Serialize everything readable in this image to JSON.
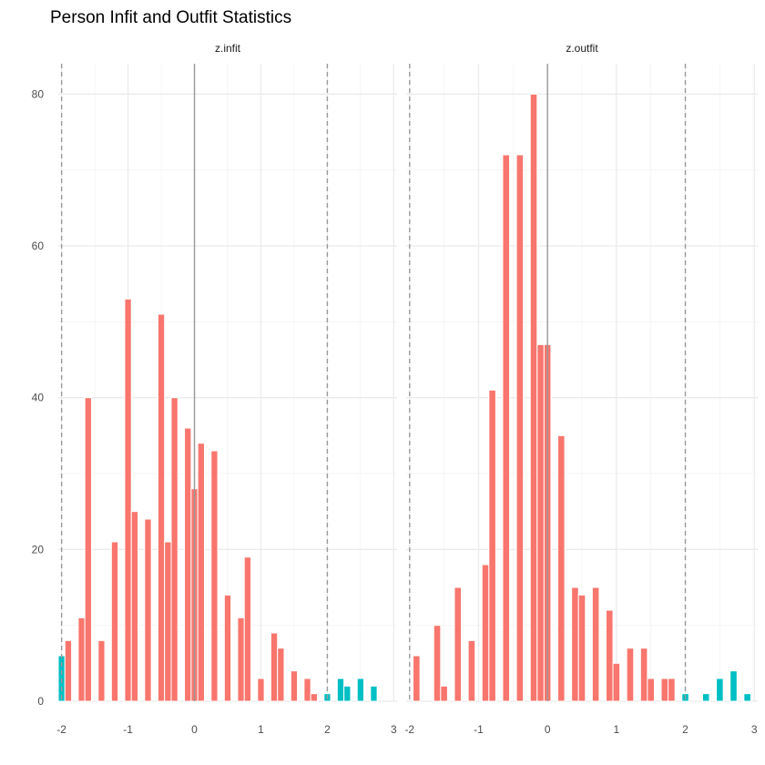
{
  "chart_data": {
    "type": "bar",
    "title": "Person Infit and Outfit Statistics",
    "xlabel": "",
    "ylabel": "",
    "ylim": [
      0,
      84
    ],
    "xlim": [
      -2.05,
      3.05
    ],
    "x_ticks": [
      -2,
      -1,
      0,
      1,
      2,
      3
    ],
    "y_ticks": [
      0,
      20,
      40,
      60,
      80
    ],
    "grid": true,
    "legend": "none",
    "reference_lines": {
      "solid": [
        0
      ],
      "dashed": [
        -2,
        2
      ]
    },
    "colors": {
      "inside": "#F8766D",
      "outside": "#00BFC4",
      "grid": "#ebebeb",
      "ref_line": "#999999"
    },
    "bin_width": 0.1,
    "panels": [
      {
        "label": "z.infit",
        "bars": [
          {
            "x": -2.0,
            "y": 6,
            "group": "outside"
          },
          {
            "x": -1.9,
            "y": 8,
            "group": "inside"
          },
          {
            "x": -1.7,
            "y": 11,
            "group": "inside"
          },
          {
            "x": -1.6,
            "y": 40,
            "group": "inside"
          },
          {
            "x": -1.4,
            "y": 8,
            "group": "inside"
          },
          {
            "x": -1.2,
            "y": 21,
            "group": "inside"
          },
          {
            "x": -1.0,
            "y": 53,
            "group": "inside"
          },
          {
            "x": -0.9,
            "y": 25,
            "group": "inside"
          },
          {
            "x": -0.7,
            "y": 24,
            "group": "inside"
          },
          {
            "x": -0.5,
            "y": 51,
            "group": "inside"
          },
          {
            "x": -0.4,
            "y": 21,
            "group": "inside"
          },
          {
            "x": -0.3,
            "y": 40,
            "group": "inside"
          },
          {
            "x": -0.1,
            "y": 36,
            "group": "inside"
          },
          {
            "x": 0.0,
            "y": 28,
            "group": "inside"
          },
          {
            "x": 0.1,
            "y": 34,
            "group": "inside"
          },
          {
            "x": 0.3,
            "y": 33,
            "group": "inside"
          },
          {
            "x": 0.5,
            "y": 14,
            "group": "inside"
          },
          {
            "x": 0.7,
            "y": 11,
            "group": "inside"
          },
          {
            "x": 0.8,
            "y": 19,
            "group": "inside"
          },
          {
            "x": 1.0,
            "y": 3,
            "group": "inside"
          },
          {
            "x": 1.2,
            "y": 9,
            "group": "inside"
          },
          {
            "x": 1.3,
            "y": 7,
            "group": "inside"
          },
          {
            "x": 1.5,
            "y": 4,
            "group": "inside"
          },
          {
            "x": 1.7,
            "y": 3,
            "group": "inside"
          },
          {
            "x": 1.8,
            "y": 1,
            "group": "inside"
          },
          {
            "x": 2.0,
            "y": 1,
            "group": "outside"
          },
          {
            "x": 2.2,
            "y": 3,
            "group": "outside"
          },
          {
            "x": 2.3,
            "y": 2,
            "group": "outside"
          },
          {
            "x": 2.5,
            "y": 3,
            "group": "outside"
          },
          {
            "x": 2.7,
            "y": 2,
            "group": "outside"
          }
        ]
      },
      {
        "label": "z.outfit",
        "bars": [
          {
            "x": -1.9,
            "y": 6,
            "group": "inside"
          },
          {
            "x": -1.6,
            "y": 10,
            "group": "inside"
          },
          {
            "x": -1.5,
            "y": 2,
            "group": "inside"
          },
          {
            "x": -1.3,
            "y": 15,
            "group": "inside"
          },
          {
            "x": -1.1,
            "y": 8,
            "group": "inside"
          },
          {
            "x": -0.9,
            "y": 18,
            "group": "inside"
          },
          {
            "x": -0.8,
            "y": 41,
            "group": "inside"
          },
          {
            "x": -0.6,
            "y": 72,
            "group": "inside"
          },
          {
            "x": -0.4,
            "y": 72,
            "group": "inside"
          },
          {
            "x": -0.2,
            "y": 80,
            "group": "inside"
          },
          {
            "x": -0.1,
            "y": 47,
            "group": "inside"
          },
          {
            "x": 0.0,
            "y": 47,
            "group": "inside"
          },
          {
            "x": 0.2,
            "y": 35,
            "group": "inside"
          },
          {
            "x": 0.4,
            "y": 15,
            "group": "inside"
          },
          {
            "x": 0.5,
            "y": 14,
            "group": "inside"
          },
          {
            "x": 0.7,
            "y": 15,
            "group": "inside"
          },
          {
            "x": 0.9,
            "y": 12,
            "group": "inside"
          },
          {
            "x": 1.0,
            "y": 5,
            "group": "inside"
          },
          {
            "x": 1.2,
            "y": 7,
            "group": "inside"
          },
          {
            "x": 1.4,
            "y": 7,
            "group": "inside"
          },
          {
            "x": 1.5,
            "y": 3,
            "group": "inside"
          },
          {
            "x": 1.7,
            "y": 3,
            "group": "inside"
          },
          {
            "x": 1.8,
            "y": 3,
            "group": "inside"
          },
          {
            "x": 2.0,
            "y": 1,
            "group": "outside"
          },
          {
            "x": 2.3,
            "y": 1,
            "group": "outside"
          },
          {
            "x": 2.5,
            "y": 3,
            "group": "outside"
          },
          {
            "x": 2.7,
            "y": 4,
            "group": "outside"
          },
          {
            "x": 2.9,
            "y": 1,
            "group": "outside"
          }
        ]
      }
    ]
  }
}
